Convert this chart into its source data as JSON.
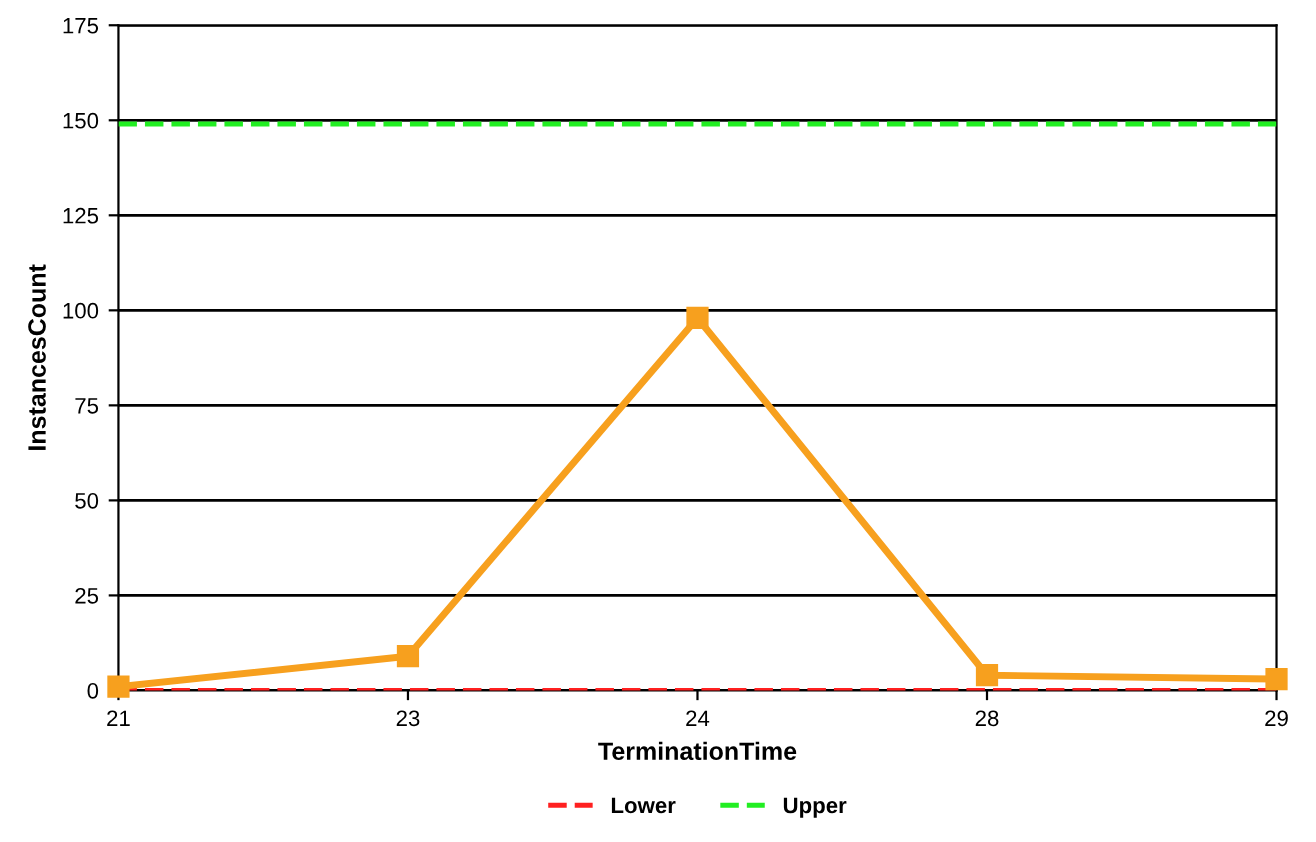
{
  "chart_data": {
    "type": "line",
    "xlabel": "TerminationTime",
    "ylabel": "InstancesCount",
    "categories": [
      "21",
      "23",
      "24",
      "28",
      "29"
    ],
    "series": [
      {
        "color": "#f7a01e",
        "values": [
          1,
          9,
          98,
          4,
          3
        ]
      }
    ],
    "marker": "square",
    "line_style": "solid",
    "ylim": [
      0,
      175
    ],
    "yticks": [
      0,
      25,
      50,
      75,
      100,
      125,
      150,
      175
    ],
    "grid": "y",
    "legend": "bottom",
    "ref_lines": [
      {
        "axis": "y",
        "value": 0,
        "label": "Lower",
        "color": "#ff2020",
        "line_style": "dashed"
      },
      {
        "axis": "y",
        "value": 149,
        "label": "Upper",
        "color": "#22ee22",
        "line_style": "dashed"
      }
    ]
  }
}
